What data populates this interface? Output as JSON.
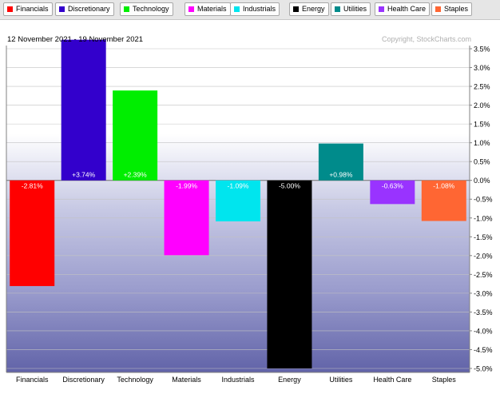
{
  "legend": [
    {
      "label": "Financials",
      "color": "#ff0000"
    },
    {
      "label": "Discretionary",
      "color": "#3300cc"
    },
    {
      "label": "Technology",
      "color": "#00ee00"
    },
    {
      "label": "Materials",
      "color": "#ff00ff"
    },
    {
      "label": "Industrials",
      "color": "#00e5ee"
    },
    {
      "label": "Energy",
      "color": "#000000"
    },
    {
      "label": "Utilities",
      "color": "#008b8b"
    },
    {
      "label": "Health Care",
      "color": "#9933ff"
    },
    {
      "label": "Staples",
      "color": "#ff6633"
    }
  ],
  "header": {
    "date_range": "12 November 2021 - 19 November 2021",
    "copyright": "Copyright, StockCharts.com"
  },
  "chart_data": {
    "type": "bar",
    "title": "12 November 2021 - 19 November 2021",
    "categories": [
      "Financials",
      "Discretionary",
      "Technology",
      "Materials",
      "Industrials",
      "Energy",
      "Utilities",
      "Health Care",
      "Staples"
    ],
    "values": [
      -2.81,
      3.74,
      2.39,
      -1.99,
      -1.09,
      -5.0,
      0.98,
      -0.63,
      -1.08
    ],
    "data_labels": [
      "-2.81%",
      "+3.74%",
      "+2.39%",
      "-1.99%",
      "-1.09%",
      "-5.00%",
      "+0.98%",
      "-0.63%",
      "-1.08%"
    ],
    "colors": [
      "#ff0000",
      "#3300cc",
      "#00ee00",
      "#ff00ff",
      "#00e5ee",
      "#000000",
      "#008b8b",
      "#9933ff",
      "#ff6633"
    ],
    "ylim": [
      -5.0,
      3.5
    ],
    "yticks": [
      3.5,
      3.0,
      2.5,
      2.0,
      1.5,
      1.0,
      0.5,
      0.0,
      -0.5,
      -1.0,
      -1.5,
      -2.0,
      -2.5,
      -3.0,
      -3.5,
      -4.0,
      -4.5,
      -5.0
    ],
    "ytick_labels": [
      "3.5%",
      "3.0%",
      "2.5%",
      "2.0%",
      "1.5%",
      "1.0%",
      "0.5%",
      "0.0%",
      "-0.5%",
      "-1.0%",
      "-1.5%",
      "-2.0%",
      "-2.5%",
      "-3.0%",
      "-3.5%",
      "-4.0%",
      "-4.5%",
      "-5.0%"
    ],
    "xlabel": "",
    "ylabel": "",
    "grid": true,
    "y_axis_position": "right"
  }
}
